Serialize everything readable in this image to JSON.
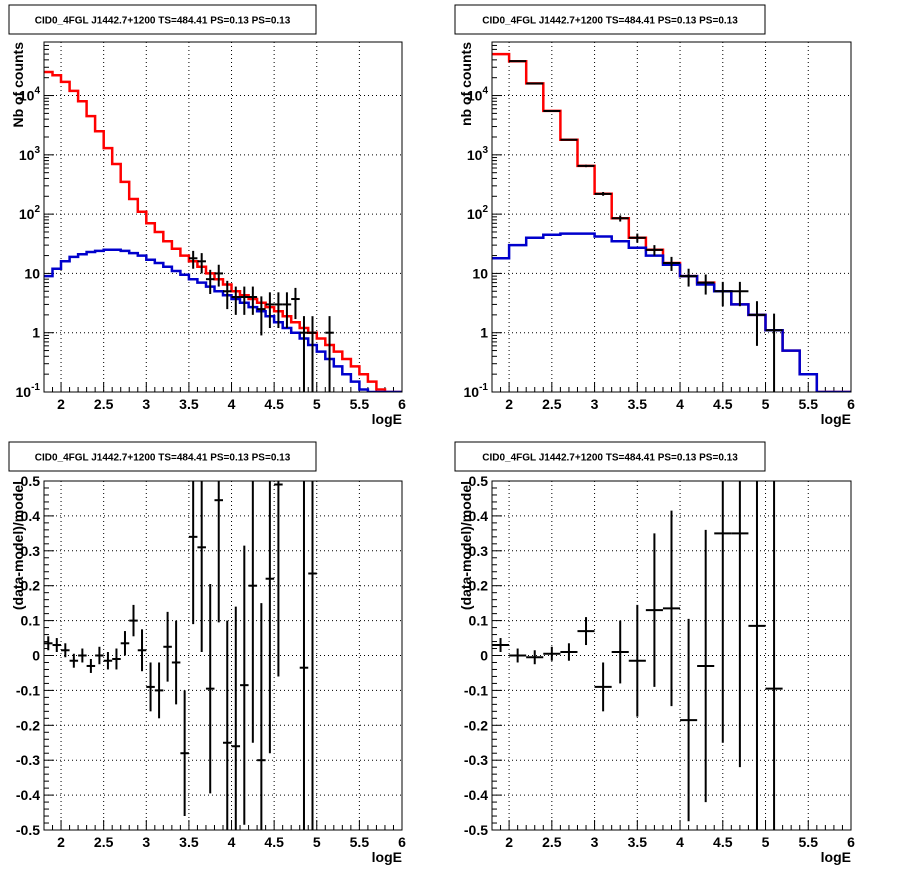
{
  "chart_data": [
    {
      "type": "line",
      "title": "CID0_4FGL J1442.7+1200 TS=484.41 PS=0.13 PS=0.13",
      "xlabel": "logE",
      "ylabel": "Nb of counts",
      "xlim": [
        1.8,
        6
      ],
      "ylim": [
        0.1,
        80000
      ],
      "yscale": "log",
      "grid": true,
      "x_ticks": [
        "2",
        "2.5",
        "3",
        "3.5",
        "4",
        "4.5",
        "5",
        "5.5",
        "6"
      ],
      "y_ticks": [
        "10^-1",
        "1",
        "10",
        "10^2",
        "10^3",
        "10^4"
      ],
      "series": [
        {
          "color": "#ff0000",
          "style": "step",
          "bins": [
            1.8,
            1.9,
            2.0,
            2.1,
            2.2,
            2.3,
            2.4,
            2.5,
            2.6,
            2.7,
            2.8,
            2.9,
            3.0,
            3.1,
            3.2,
            3.3,
            3.4,
            3.5,
            3.6,
            3.7,
            3.8,
            3.9,
            4.0,
            4.1,
            4.2,
            4.3,
            4.4,
            4.5,
            4.6,
            4.7,
            4.8,
            4.9,
            5.0,
            5.1,
            5.2,
            5.3,
            5.4,
            5.5,
            5.6,
            5.7,
            5.8,
            5.9,
            6.0
          ],
          "values": [
            25000,
            22000,
            17000,
            12000,
            8000,
            4500,
            2500,
            1300,
            700,
            350,
            180,
            110,
            70,
            50,
            35,
            26,
            20,
            16,
            13,
            10,
            8,
            6.5,
            5,
            4.3,
            3.7,
            3.2,
            2.7,
            2.3,
            1.9,
            1.5,
            1.2,
            1.0,
            0.8,
            0.62,
            0.48,
            0.36,
            0.27,
            0.2,
            0.15,
            0.11,
            0.1,
            0.1
          ]
        },
        {
          "color": "#0000cc",
          "style": "step",
          "bins": [
            1.8,
            1.9,
            2.0,
            2.1,
            2.2,
            2.3,
            2.4,
            2.5,
            2.6,
            2.7,
            2.8,
            2.9,
            3.0,
            3.1,
            3.2,
            3.3,
            3.4,
            3.5,
            3.6,
            3.7,
            3.8,
            3.9,
            4.0,
            4.1,
            4.2,
            4.3,
            4.4,
            4.5,
            4.6,
            4.7,
            4.8,
            4.9,
            5.0,
            5.1,
            5.2,
            5.3,
            5.4,
            5.5,
            5.6,
            5.7,
            5.8,
            5.9,
            6.0
          ],
          "values": [
            9,
            12,
            16,
            19,
            21,
            23,
            24,
            25,
            25,
            24,
            22,
            20,
            17,
            15,
            13,
            11,
            9.5,
            8,
            7,
            6,
            5,
            4.3,
            3.7,
            3.2,
            2.7,
            2.3,
            1.9,
            1.5,
            1.2,
            1.0,
            0.8,
            0.62,
            0.48,
            0.36,
            0.27,
            0.2,
            0.15,
            0.11,
            0.1,
            0.1,
            0.1,
            0.1
          ]
        }
      ],
      "points": {
        "color": "#000000",
        "x": [
          3.55,
          3.65,
          3.75,
          3.85,
          3.95,
          4.05,
          4.15,
          4.25,
          4.35,
          4.45,
          4.55,
          4.65,
          4.75,
          4.85,
          4.95,
          5.15
        ],
        "y": [
          18,
          16,
          8,
          10,
          5,
          4,
          4,
          4,
          2.5,
          3,
          3,
          3,
          3.7,
          1,
          1,
          1
        ],
        "err": [
          6,
          6,
          3.5,
          4,
          2.5,
          2,
          2,
          2,
          1.6,
          1.8,
          1.8,
          1.8,
          2,
          0.9,
          0.9,
          0.9
        ]
      }
    },
    {
      "type": "line",
      "title": "CID0_4FGL J1442.7+1200 TS=484.41 PS=0.13 PS=0.13",
      "xlabel": "logE",
      "ylabel": "nb of counts",
      "xlim": [
        1.8,
        6
      ],
      "ylim": [
        0.1,
        80000
      ],
      "yscale": "log",
      "grid": true,
      "x_ticks": [
        "2",
        "2.5",
        "3",
        "3.5",
        "4",
        "4.5",
        "5",
        "5.5",
        "6"
      ],
      "y_ticks": [
        "10^-1",
        "1",
        "10",
        "10^2",
        "10^3",
        "10^4"
      ],
      "series": [
        {
          "color": "#ff0000",
          "style": "step",
          "bins": [
            1.8,
            2.0,
            2.2,
            2.4,
            2.6,
            2.8,
            3.0,
            3.2,
            3.4,
            3.6,
            3.8,
            4.0,
            4.2,
            4.4,
            4.6,
            4.8,
            5.0,
            5.2,
            5.4,
            5.6,
            5.8,
            6.0
          ],
          "values": [
            50000,
            38000,
            16000,
            5500,
            1800,
            650,
            220,
            85,
            40,
            25,
            15,
            9,
            7,
            5,
            3,
            2,
            1.1,
            0.5,
            0.2,
            0.1,
            0.1
          ]
        },
        {
          "color": "#0000cc",
          "style": "step",
          "bins": [
            1.8,
            2.0,
            2.2,
            2.4,
            2.6,
            2.8,
            3.0,
            3.2,
            3.4,
            3.6,
            3.8,
            4.0,
            4.2,
            4.4,
            4.6,
            4.8,
            5.0,
            5.2,
            5.4,
            5.6,
            5.8,
            6.0
          ],
          "values": [
            18,
            30,
            40,
            45,
            47,
            47,
            42,
            35,
            27,
            20,
            14,
            9,
            6.5,
            5,
            3,
            2,
            1.1,
            0.5,
            0.2,
            0.1,
            0.1
          ]
        }
      ],
      "points": {
        "color": "#000000",
        "x": [
          2.1,
          2.3,
          2.5,
          2.7,
          2.9,
          3.1,
          3.3,
          3.5,
          3.7,
          3.9,
          4.1,
          4.3,
          4.5,
          4.7,
          4.9,
          5.1
        ],
        "y": [
          38000,
          16000,
          5500,
          1800,
          650,
          220,
          85,
          40,
          25,
          15,
          9,
          7,
          5,
          5,
          2,
          1.1
        ],
        "err": [
          200,
          130,
          75,
          45,
          30,
          16,
          10,
          7,
          5,
          4,
          3,
          2.6,
          2.2,
          2.2,
          1.4,
          1.0
        ]
      }
    },
    {
      "type": "scatter",
      "title": "CID0_4FGL J1442.7+1200 TS=484.41 PS=0.13 PS=0.13",
      "xlabel": "logE",
      "ylabel": "(data-model)/model",
      "xlim": [
        1.8,
        6
      ],
      "ylim": [
        -0.5,
        0.5
      ],
      "grid": true,
      "x_ticks": [
        "2",
        "2.5",
        "3",
        "3.5",
        "4",
        "4.5",
        "5",
        "5.5",
        "6"
      ],
      "y_ticks": [
        "-0.5",
        "-0.4",
        "-0.3",
        "-0.2",
        "-0.1",
        "0",
        "0.1",
        "0.2",
        "0.3",
        "0.4",
        "0.5"
      ],
      "points": {
        "color": "#000000",
        "x": [
          1.85,
          1.95,
          2.05,
          2.15,
          2.25,
          2.35,
          2.45,
          2.55,
          2.65,
          2.75,
          2.85,
          2.95,
          3.05,
          3.15,
          3.25,
          3.35,
          3.45,
          3.55,
          3.65,
          3.75,
          3.85,
          3.95,
          4.05,
          4.15,
          4.25,
          4.35,
          4.45,
          4.55,
          4.85,
          4.95
        ],
        "y": [
          0.035,
          0.03,
          0.015,
          -0.015,
          0,
          -0.03,
          0,
          -0.015,
          -0.01,
          0.035,
          0.1,
          0.015,
          -0.09,
          -0.1,
          0.025,
          -0.02,
          -0.28,
          0.34,
          0.31,
          -0.095,
          0.445,
          -0.25,
          -0.26,
          -0.085,
          0.2,
          -0.3,
          0.22,
          0.49,
          -0.035,
          0.235
        ],
        "err": [
          0.02,
          0.02,
          0.02,
          0.02,
          0.02,
          0.02,
          0.025,
          0.025,
          0.03,
          0.035,
          0.045,
          0.06,
          0.07,
          0.08,
          0.1,
          0.12,
          0.18,
          0.25,
          0.3,
          0.3,
          0.35,
          0.35,
          0.4,
          0.4,
          0.45,
          0.45,
          0.5,
          0.55,
          0.9,
          0.9
        ]
      }
    },
    {
      "type": "scatter",
      "title": "CID0_4FGL J1442.7+1200 TS=484.41 PS=0.13 PS=0.13",
      "xlabel": "logE",
      "ylabel": "(data-model)/model",
      "xlim": [
        1.8,
        6
      ],
      "ylim": [
        -0.5,
        0.5
      ],
      "grid": true,
      "x_ticks": [
        "2",
        "2.5",
        "3",
        "3.5",
        "4",
        "4.5",
        "5",
        "5.5",
        "6"
      ],
      "y_ticks": [
        "-0.5",
        "-0.4",
        "-0.3",
        "-0.2",
        "-0.1",
        "0",
        "0.1",
        "0.2",
        "0.3",
        "0.4",
        "0.5"
      ],
      "points": {
        "color": "#000000",
        "x": [
          1.9,
          2.1,
          2.3,
          2.5,
          2.7,
          2.9,
          3.1,
          3.3,
          3.5,
          3.7,
          3.9,
          4.1,
          4.3,
          4.5,
          4.7,
          4.9,
          5.1
        ],
        "y": [
          0.03,
          0,
          -0.005,
          0.005,
          0.01,
          0.07,
          -0.09,
          0.01,
          -0.015,
          0.13,
          0.135,
          -0.185,
          -0.03,
          0.35,
          0.35,
          0.085,
          -0.095
        ],
        "err": [
          0.02,
          0.02,
          0.02,
          0.02,
          0.025,
          0.04,
          0.07,
          0.09,
          0.16,
          0.22,
          0.28,
          0.29,
          0.39,
          0.6,
          0.67,
          0.9,
          0.9
        ]
      }
    }
  ]
}
